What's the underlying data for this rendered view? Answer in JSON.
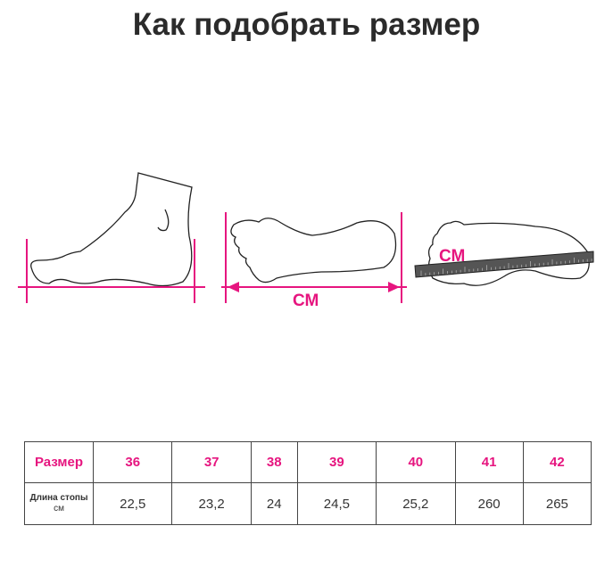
{
  "title": "Как подобрать размер",
  "illustration": {
    "label_cm_bottom": "СМ",
    "label_cm_ruler": "СМ",
    "accent_color": "#e6157f",
    "ruler_color": "#555555"
  },
  "table": {
    "row_size_label": "Размер",
    "row_length_label": "Длина стопы",
    "row_length_unit": "см",
    "sizes": [
      "36",
      "37",
      "38",
      "39",
      "40",
      "41",
      "42"
    ],
    "lengths": [
      "22,5",
      "23,2",
      "24",
      "24,5",
      "25,2",
      "260",
      "265"
    ]
  }
}
